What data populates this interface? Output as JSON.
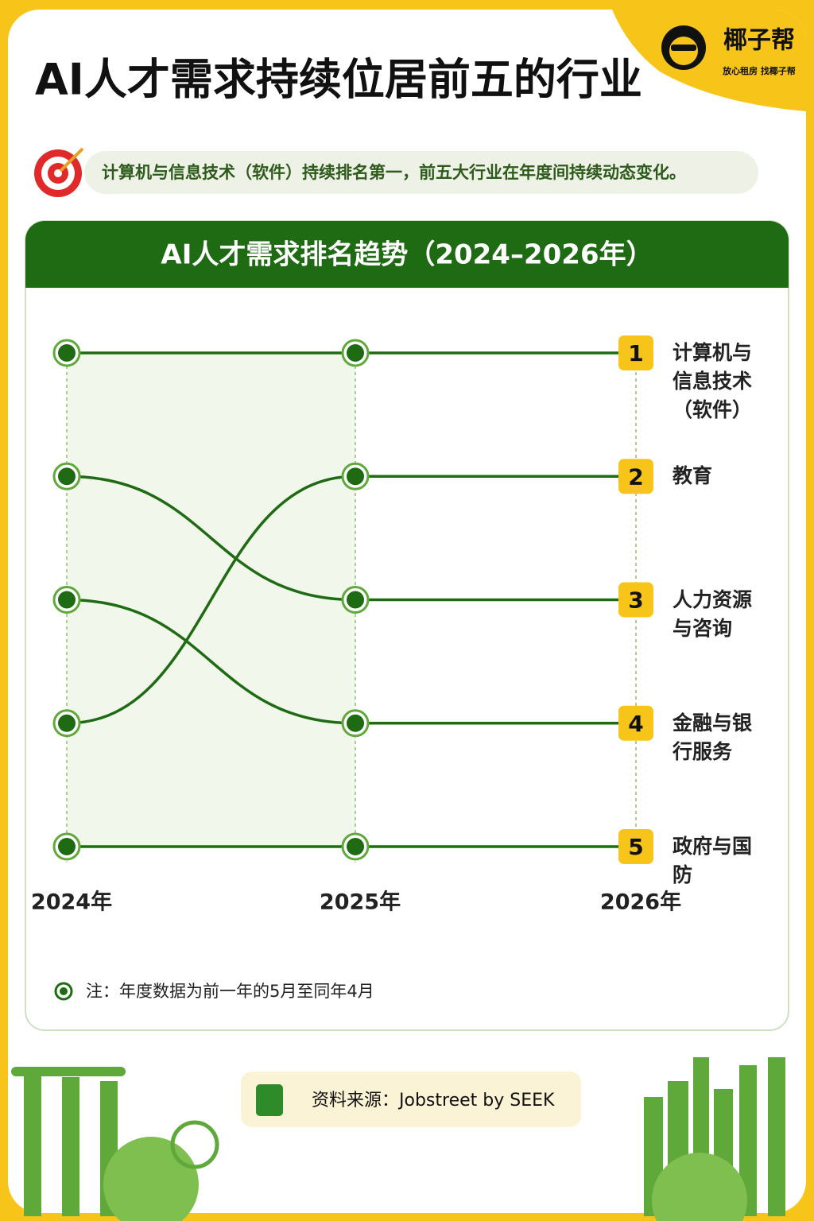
{
  "header": {
    "brand": "椰子帮",
    "slogan": "放心租房  找椰子帮",
    "title": "AI人才需求持续位居前五的行业",
    "subtitle": "计算机与信息技术（软件）持续排名第一，前五大行业在年度间持续动态变化。"
  },
  "chart_data": {
    "type": "bump",
    "title": "AI人才需求排名趋势（2024–2026年）",
    "categories": [
      "2024年",
      "2025年",
      "2026年"
    ],
    "ylim": [
      1,
      5
    ],
    "invert_y": true,
    "yticks": [
      1,
      2,
      3,
      4,
      5
    ],
    "series": [
      {
        "name": "计算机与信息技术（软件）",
        "color": "#1f6b14",
        "values": [
          1,
          1,
          1
        ]
      },
      {
        "name": "教育",
        "color": "#1f6b14",
        "values": [
          4,
          2,
          2
        ]
      },
      {
        "name": "人力资源与咨询",
        "color": "#1f6b14",
        "values": [
          2,
          3,
          3
        ]
      },
      {
        "name": "金融与银行服务",
        "color": "#1f6b14",
        "values": [
          3,
          4,
          4
        ]
      },
      {
        "name": "政府与国防",
        "color": "#1f6b14",
        "values": [
          5,
          5,
          5
        ]
      }
    ],
    "note": "注：年度数据为前一年的5月至同年4月",
    "source": "资料来源：Jobstreet by SEEK"
  }
}
